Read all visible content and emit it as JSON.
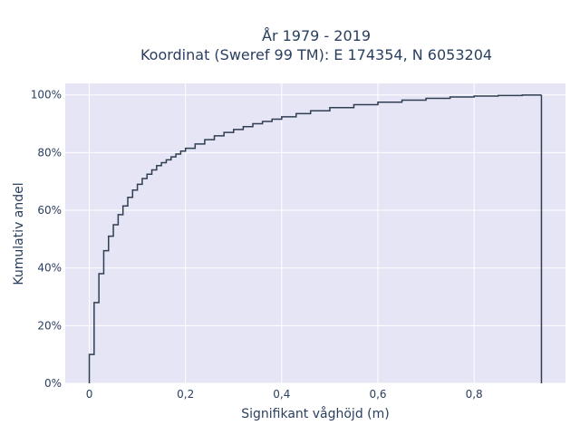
{
  "chart_data": {
    "type": "line",
    "step": true,
    "title": [
      "År 1979 - 2019",
      "Koordinat (Sweref 99 TM): E 174354, N 6053204"
    ],
    "xlabel": "Signifikant våghöjd (m)",
    "ylabel": "Kumulativ andel",
    "xlim": [
      -0.05,
      0.99
    ],
    "ylim": [
      0,
      1.04
    ],
    "xticks": [
      {
        "value": 0,
        "label": "0"
      },
      {
        "value": 0.2,
        "label": "0,2"
      },
      {
        "value": 0.4,
        "label": "0,4"
      },
      {
        "value": 0.6,
        "label": "0,6"
      },
      {
        "value": 0.8,
        "label": "0,8"
      }
    ],
    "yticks": [
      {
        "value": 0,
        "label": "0%"
      },
      {
        "value": 0.2,
        "label": "20%"
      },
      {
        "value": 0.4,
        "label": "40%"
      },
      {
        "value": 0.6,
        "label": "60%"
      },
      {
        "value": 0.8,
        "label": "80%"
      },
      {
        "value": 1.0,
        "label": "100%"
      }
    ],
    "grid": true,
    "background": "#e5e5f5",
    "line_color": "#2f3e52",
    "x": [
      0,
      0.01,
      0.02,
      0.03,
      0.04,
      0.05,
      0.06,
      0.07,
      0.08,
      0.09,
      0.1,
      0.11,
      0.12,
      0.13,
      0.14,
      0.15,
      0.16,
      0.17,
      0.18,
      0.19,
      0.2,
      0.22,
      0.24,
      0.26,
      0.28,
      0.3,
      0.32,
      0.34,
      0.36,
      0.38,
      0.4,
      0.43,
      0.46,
      0.5,
      0.55,
      0.6,
      0.65,
      0.7,
      0.75,
      0.8,
      0.85,
      0.9,
      0.94
    ],
    "y": [
      0.1,
      0.28,
      0.38,
      0.46,
      0.51,
      0.55,
      0.585,
      0.615,
      0.645,
      0.67,
      0.69,
      0.71,
      0.725,
      0.74,
      0.755,
      0.765,
      0.775,
      0.785,
      0.795,
      0.805,
      0.815,
      0.83,
      0.845,
      0.858,
      0.87,
      0.88,
      0.89,
      0.9,
      0.908,
      0.916,
      0.924,
      0.935,
      0.945,
      0.956,
      0.966,
      0.975,
      0.982,
      0.988,
      0.993,
      0.996,
      0.998,
      0.9995,
      1.0
    ]
  }
}
